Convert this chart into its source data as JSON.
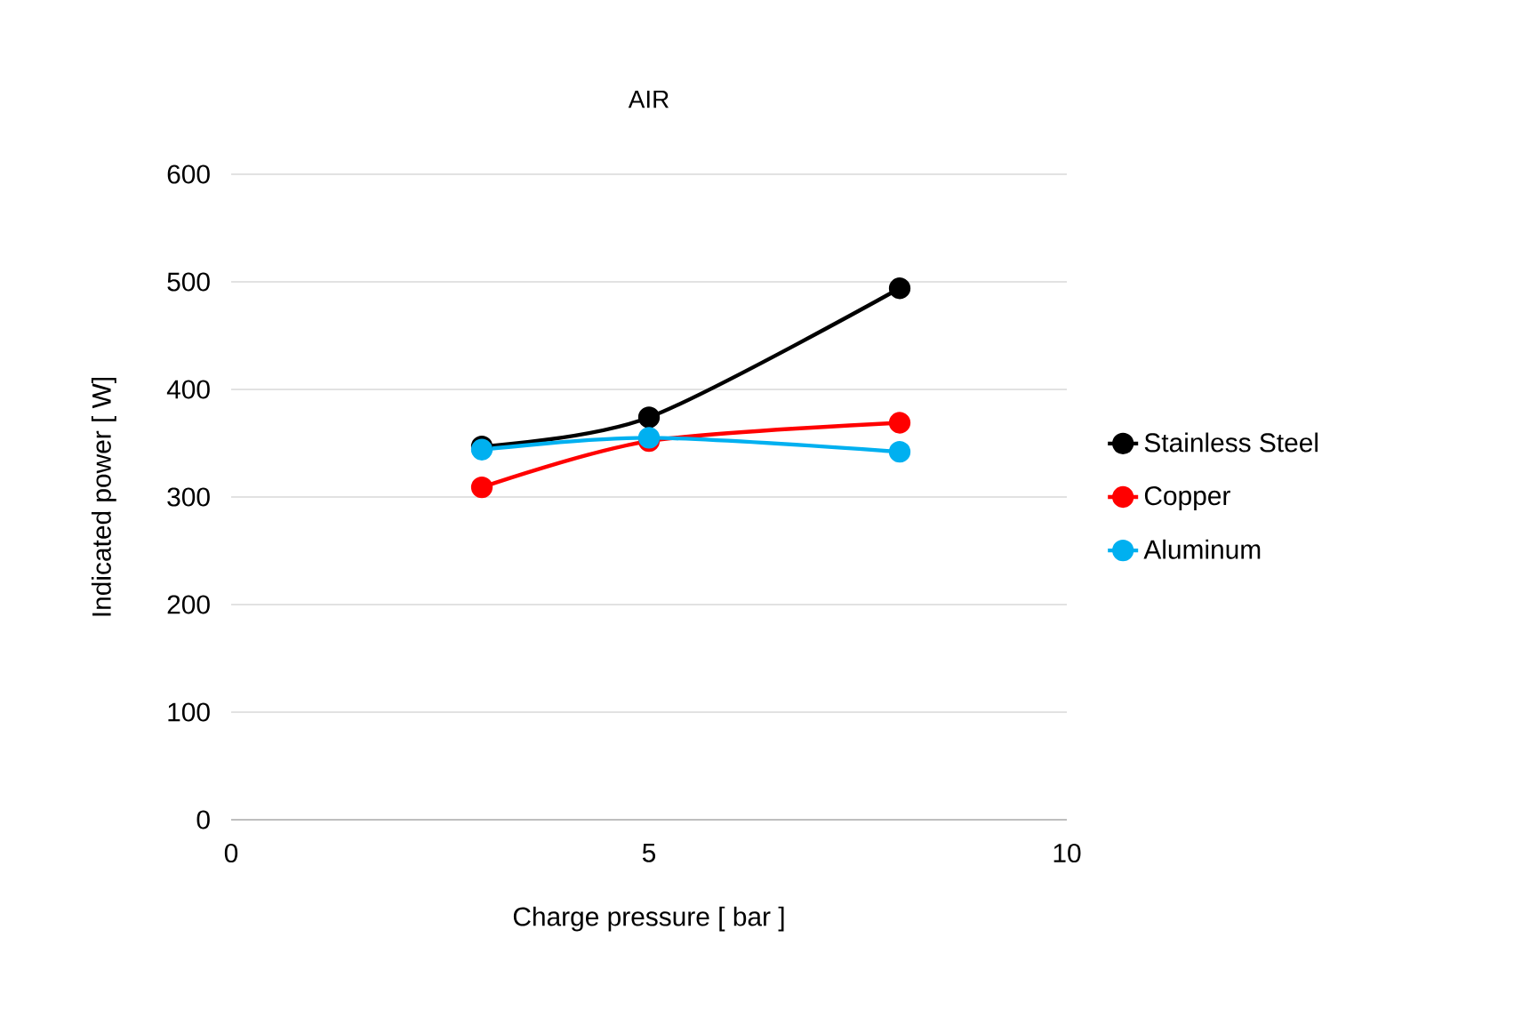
{
  "chart_data": {
    "type": "line",
    "title": "AIR",
    "xlabel": "Charge pressure [ bar ]",
    "ylabel": "Indicated power [ W]",
    "xlim": [
      0,
      10
    ],
    "xticks": [
      0,
      5,
      10
    ],
    "ylim": [
      0,
      600
    ],
    "yticks": [
      0,
      100,
      200,
      300,
      400,
      500,
      600
    ],
    "grid": "y",
    "legend": "right",
    "marker": "circle",
    "line_style": "solid",
    "series": [
      {
        "name": "Stainless Steel",
        "color": "#000000",
        "x": [
          3,
          5,
          8
        ],
        "values": [
          347,
          374,
          494
        ]
      },
      {
        "name": "Copper",
        "color": "#ff0000",
        "x": [
          3,
          5,
          8
        ],
        "values": [
          309,
          352,
          369
        ]
      },
      {
        "name": "Aluminum",
        "color": "#00b0f0",
        "x": [
          3,
          5,
          8
        ],
        "values": [
          344,
          355,
          342
        ]
      }
    ]
  }
}
